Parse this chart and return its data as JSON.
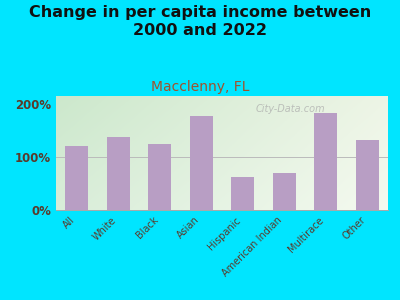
{
  "title": "Change in per capita income between\n2000 and 2022",
  "subtitle": "Macclenny, FL",
  "categories": [
    "All",
    "White",
    "Black",
    "Asian",
    "Hispanic",
    "American Indian",
    "Multirace",
    "Other"
  ],
  "values": [
    120,
    137,
    125,
    178,
    63,
    70,
    183,
    132
  ],
  "bar_color": "#b89ec4",
  "bg_outer": "#00e5ff",
  "bg_chart_topleft": "#cce8cc",
  "bg_chart_topright": "#e8f0e0",
  "bg_chart_bottomleft": "#ddeedd",
  "bg_chart_bottomright": "#f4f8f0",
  "title_color": "#111111",
  "subtitle_color": "#a0522d",
  "tick_label_color": "#5a3a2a",
  "yticks": [
    0,
    100,
    200
  ],
  "ytick_labels": [
    "0%",
    "100%",
    "200%"
  ],
  "ylim": [
    0,
    215
  ],
  "watermark": "City-Data.com",
  "title_fontsize": 11.5,
  "subtitle_fontsize": 10
}
